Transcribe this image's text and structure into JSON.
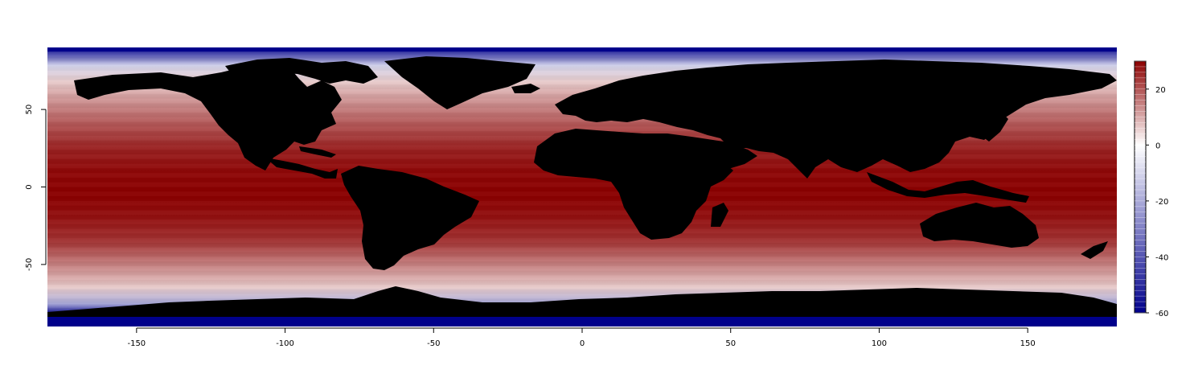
{
  "chart_data": {
    "type": "heatmap",
    "title": "",
    "xlabel": "",
    "ylabel": "",
    "xlim": [
      -180,
      180
    ],
    "ylim": [
      -90,
      90
    ],
    "x_ticks": [
      "-150",
      "-100",
      "-50",
      "0",
      "50",
      "100",
      "150"
    ],
    "y_ticks": [
      "50",
      "0",
      "-50"
    ],
    "colorbar": {
      "range": [
        -60,
        30
      ],
      "ticks": [
        "20",
        "0",
        "-20",
        "-40",
        "-60"
      ],
      "low_color": "#00008b",
      "mid_color": "#ffffff",
      "high_color": "#8b0000"
    },
    "land_color": "#000000",
    "ice_color": "#00008b",
    "legend_placement": "right",
    "grid": false,
    "latitude_profile": [
      {
        "lat": -90,
        "value": -60
      },
      {
        "lat": -82,
        "value": -58
      },
      {
        "lat": -75,
        "value": -20
      },
      {
        "lat": -65,
        "value": 6
      },
      {
        "lat": -55,
        "value": 12
      },
      {
        "lat": -45,
        "value": 18
      },
      {
        "lat": -35,
        "value": 24
      },
      {
        "lat": -20,
        "value": 28
      },
      {
        "lat": -5,
        "value": 30
      },
      {
        "lat": 10,
        "value": 29
      },
      {
        "lat": 25,
        "value": 26
      },
      {
        "lat": 40,
        "value": 20
      },
      {
        "lat": 55,
        "value": 13
      },
      {
        "lat": 68,
        "value": 6
      },
      {
        "lat": 78,
        "value": -10
      },
      {
        "lat": 85,
        "value": -40
      },
      {
        "lat": 90,
        "value": -60
      }
    ]
  }
}
